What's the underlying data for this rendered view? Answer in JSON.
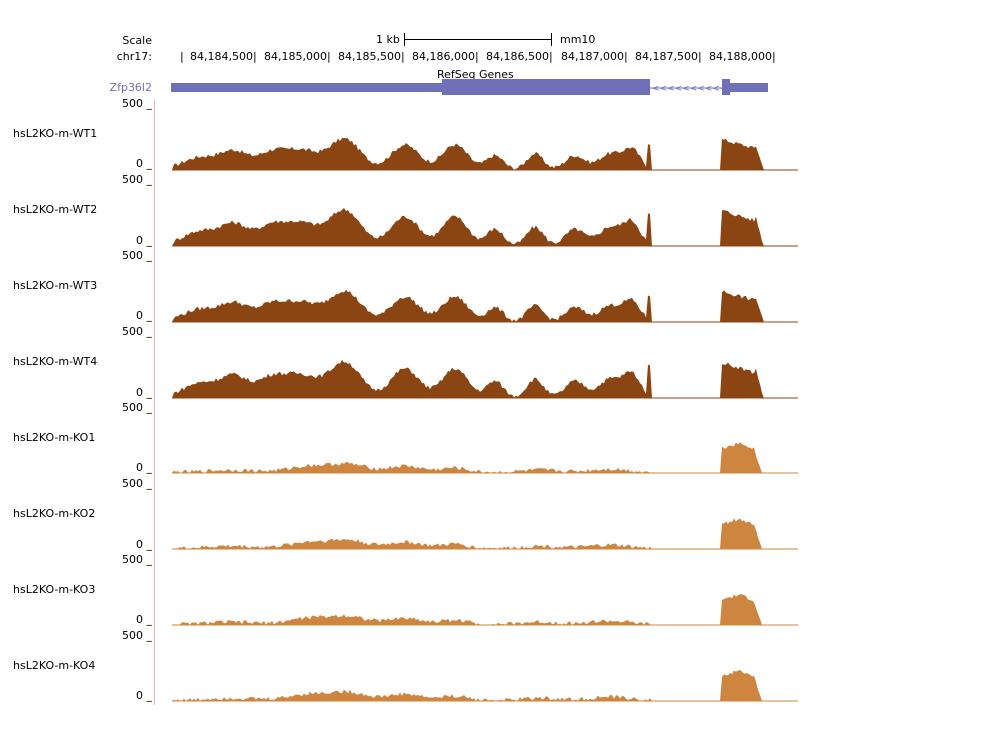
{
  "colors": {
    "wt": "#8b4513",
    "ko": "#cd853f",
    "gene": "#7070b8",
    "border": "#f0b0b0"
  },
  "header": {
    "scale_label": "Scale",
    "chrom_label": "chr17:",
    "scale_bar_label": "1 kb",
    "assembly": "mm10",
    "positions": [
      "84,184,500|",
      "84,185,000|",
      "84,185,500|",
      "84,186,000|",
      "84,186,500|",
      "84,187,000|",
      "84,187,500|",
      "84,188,000|"
    ]
  },
  "gene_track": {
    "group_label": "RefSeq Genes",
    "gene_name": "Zfp36l2",
    "strand_glyph": "<<<<<<<<<<"
  },
  "tracks": [
    {
      "name": "hsL2KO-m-WT1",
      "group": "wt",
      "max_label": "500 _",
      "min_label": "0 _"
    },
    {
      "name": "hsL2KO-m-WT2",
      "group": "wt",
      "max_label": "500 _",
      "min_label": "0 _"
    },
    {
      "name": "hsL2KO-m-WT3",
      "group": "wt",
      "max_label": "500 _",
      "min_label": "0 _"
    },
    {
      "name": "hsL2KO-m-WT4",
      "group": "wt",
      "max_label": "500 _",
      "min_label": "0 _"
    },
    {
      "name": "hsL2KO-m-KO1",
      "group": "ko",
      "max_label": "500 _",
      "min_label": "0 _"
    },
    {
      "name": "hsL2KO-m-KO2",
      "group": "ko",
      "max_label": "500 _",
      "min_label": "0 _"
    },
    {
      "name": "hsL2KO-m-KO3",
      "group": "ko",
      "max_label": "500 _",
      "min_label": "0 _"
    },
    {
      "name": "hsL2KO-m-KO4",
      "group": "ko",
      "max_label": "500 _",
      "min_label": "0 _"
    }
  ]
}
